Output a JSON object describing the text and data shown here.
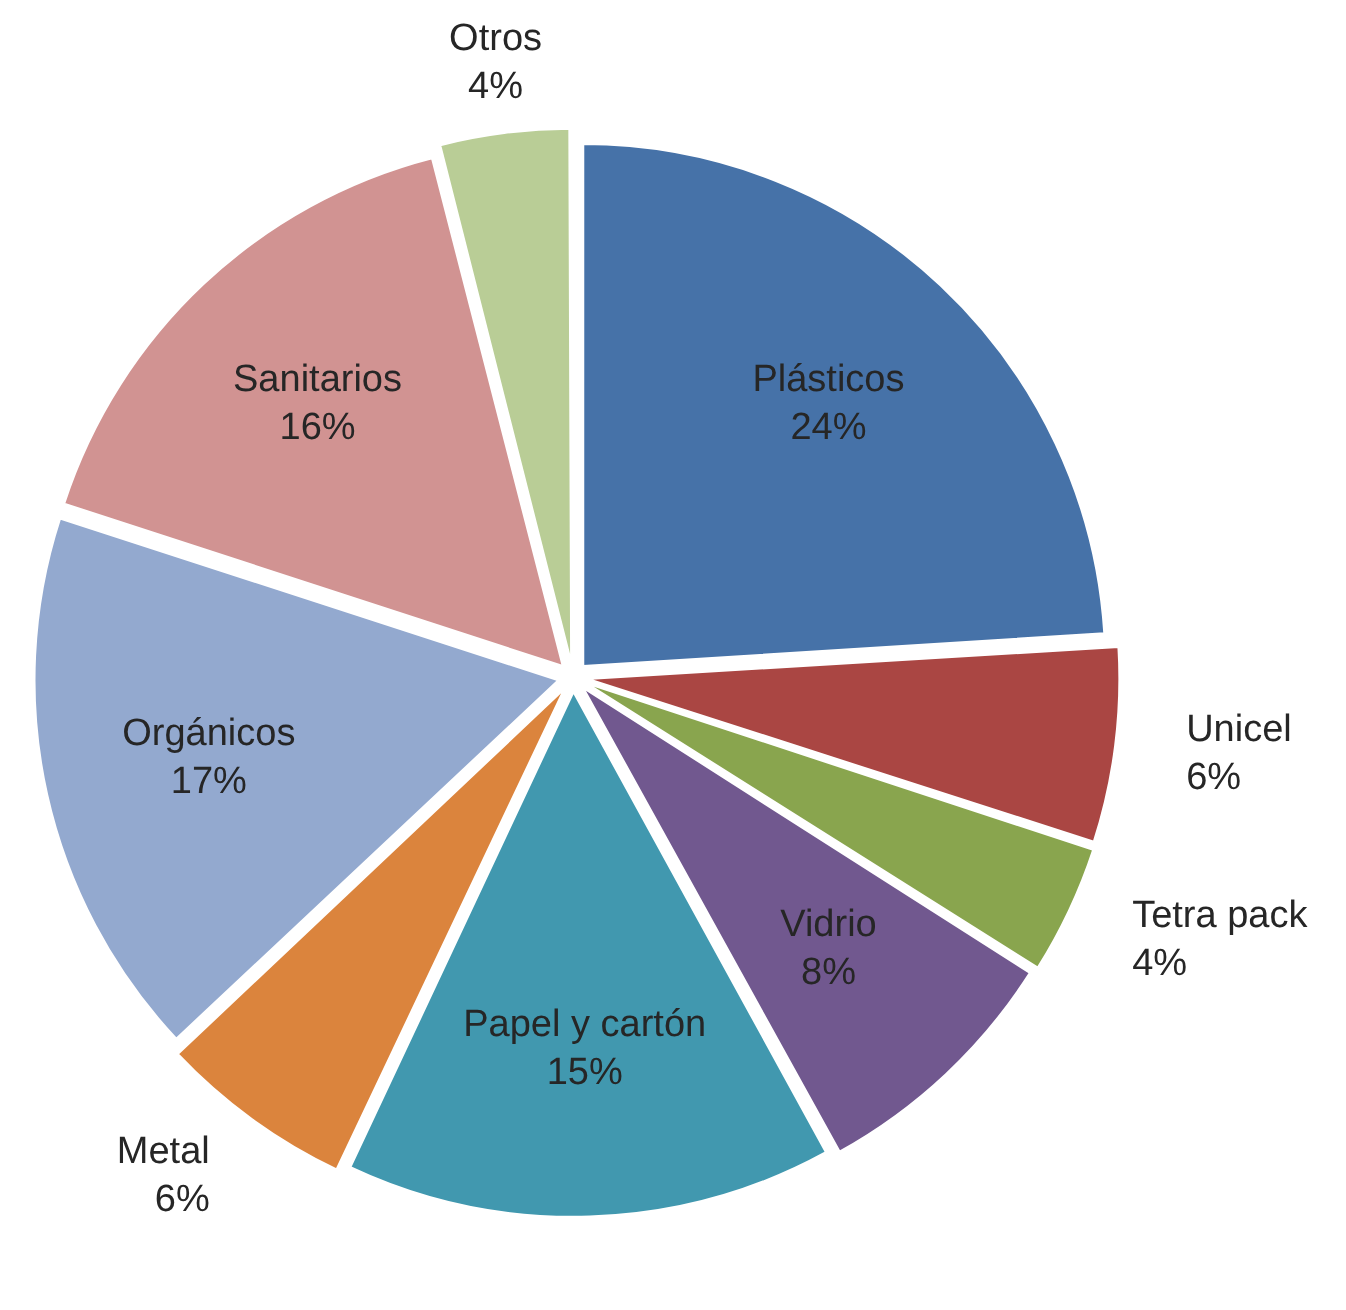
{
  "chart_data": {
    "type": "pie",
    "categories": [
      "Plásticos",
      "Unicel",
      "Tetra pack",
      "Vidrio",
      "Papel y cartón",
      "Metal",
      "Orgánicos",
      "Sanitarios",
      "Otros"
    ],
    "values": [
      24,
      6,
      4,
      8,
      15,
      6,
      17,
      16,
      4
    ],
    "value_labels": [
      "24%",
      "6%",
      "4%",
      "8%",
      "15%",
      "6%",
      "17%",
      "16%",
      "4%"
    ],
    "colors": [
      "#4672a8",
      "#aa4643",
      "#89a54e",
      "#71588f",
      "#4198af",
      "#db843d",
      "#93a9cf",
      "#d19392",
      "#b9cd96"
    ],
    "legend": false
  }
}
